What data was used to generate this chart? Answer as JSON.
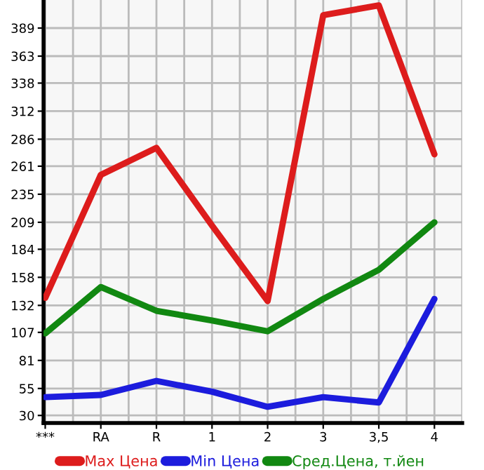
{
  "chart_data": {
    "type": "line",
    "categories": [
      "***",
      "RA",
      "R",
      "1",
      "2",
      "3",
      "3,5",
      "4"
    ],
    "series": [
      {
        "name": "Max Цена",
        "color": "#dd1c1c",
        "values": [
          139,
          253,
          278,
          206,
          136,
          401,
          410,
          272
        ]
      },
      {
        "name": "Min Цена",
        "color": "#1c1cdd",
        "values": [
          47,
          49,
          62,
          52,
          38,
          47,
          42,
          138
        ]
      },
      {
        "name": "Сред.Цена, т.йен",
        "color": "#118811",
        "values": [
          106,
          149,
          127,
          118,
          108,
          138,
          165,
          209
        ]
      }
    ],
    "ylim": [
      23,
      415
    ],
    "yticks": [
      30,
      55,
      81,
      107,
      132,
      158,
      184,
      209,
      235,
      261,
      286,
      312,
      338,
      363,
      389
    ],
    "grid": true,
    "legend": "bottom",
    "marker": "none",
    "line_style": "solid"
  }
}
